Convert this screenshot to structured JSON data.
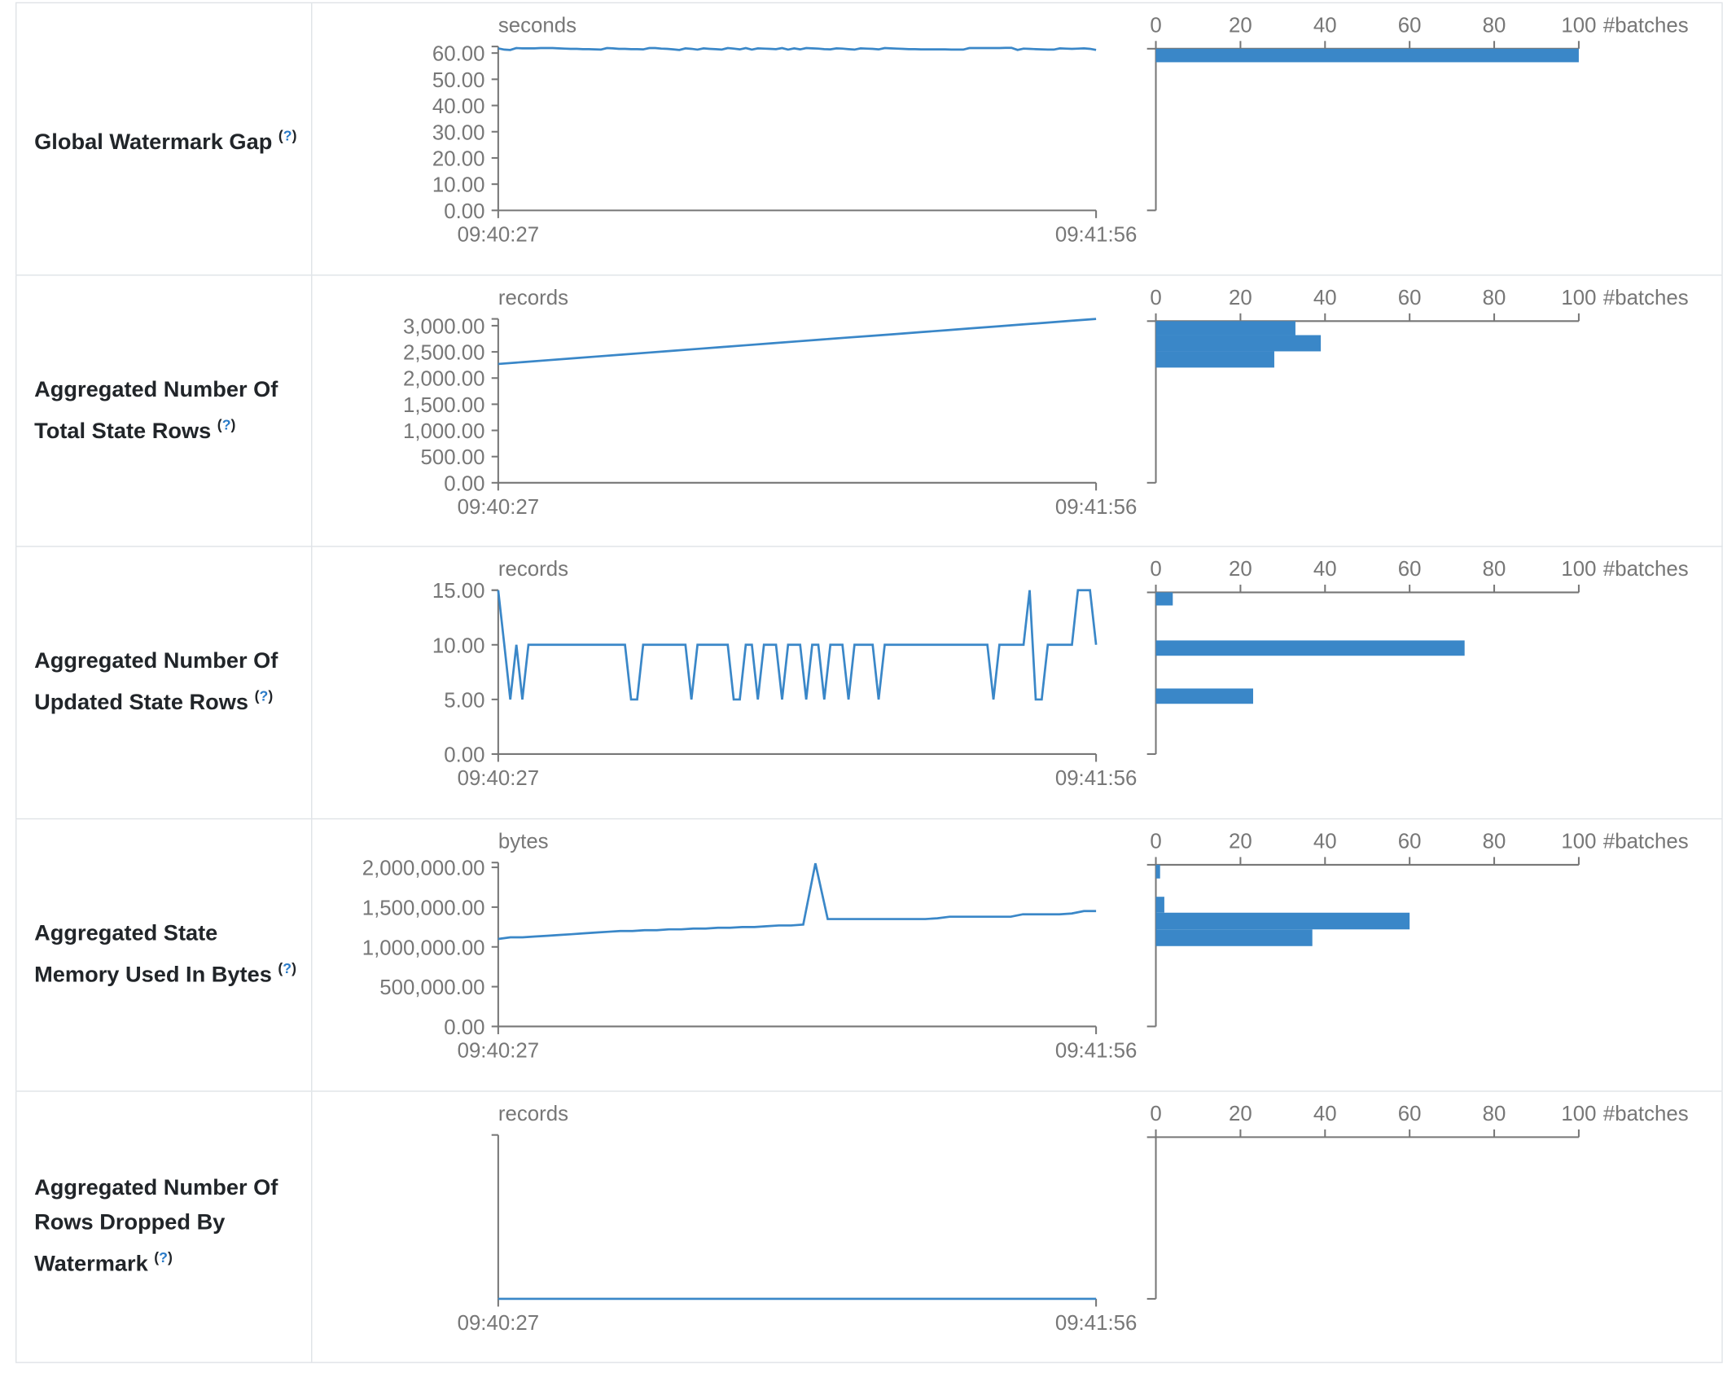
{
  "colors": {
    "series": "#3a87c8",
    "axis": "#777777",
    "border": "#dee2e6",
    "help": "#2a7bc8"
  },
  "help_icon": "question-mark",
  "x_axis": {
    "start": "09:40:27",
    "end": "09:41:56"
  },
  "histogram_axis": {
    "ticks": [
      "0",
      "20",
      "40",
      "60",
      "80",
      "100"
    ],
    "max": 100,
    "label": "#batches"
  },
  "rows": [
    {
      "label": "Global Watermark Gap",
      "help": "?",
      "chart_data": {
        "type": "line",
        "unit": "seconds",
        "ylim": [
          0,
          62.5
        ],
        "yticks": [
          {
            "v": 0,
            "t": "0.00"
          },
          {
            "v": 10,
            "t": "10.00"
          },
          {
            "v": 20,
            "t": "20.00"
          },
          {
            "v": 30,
            "t": "30.00"
          },
          {
            "v": 40,
            "t": "40.00"
          },
          {
            "v": 50,
            "t": "50.00"
          },
          {
            "v": 60,
            "t": "60.00"
          }
        ],
        "values": [
          61.8,
          61.3,
          61.2,
          61.9,
          61.8,
          61.8,
          61.8,
          61.9,
          61.9,
          61.9,
          61.8,
          61.7,
          61.6,
          61.6,
          61.5,
          61.5,
          61.4,
          61.3,
          61.9,
          61.8,
          61.6,
          61.6,
          61.5,
          61.5,
          61.4,
          61.9,
          61.9,
          61.7,
          61.6,
          61.4,
          61.2,
          61.8,
          61.6,
          61.3,
          61.8,
          61.6,
          61.5,
          61.3,
          61.9,
          61.7,
          61.4,
          61.9,
          61.3,
          61.8,
          61.7,
          61.6,
          61.5,
          61.9,
          61.3,
          61.8,
          61.4,
          61.9,
          61.8,
          61.7,
          61.5,
          61.4,
          61.8,
          61.7,
          61.5,
          61.3,
          61.8,
          61.7,
          61.6,
          61.4,
          61.9,
          61.8,
          61.7,
          61.6,
          61.5,
          61.5,
          61.4,
          61.4,
          61.4,
          61.4,
          61.4,
          61.3,
          61.3,
          61.3,
          61.9,
          61.9,
          61.9,
          61.9,
          61.9,
          61.9,
          62.0,
          62.0,
          61.2,
          61.7,
          61.6,
          61.5,
          61.4,
          61.3,
          61.3,
          61.8,
          61.7,
          61.6,
          61.7,
          61.8,
          61.6,
          61.2
        ],
        "histogram": [
          {
            "from": 56.5,
            "to": 62.5,
            "count": 100
          }
        ]
      }
    },
    {
      "label": "Aggregated Number Of Total State Rows",
      "help": "?",
      "chart_data": {
        "type": "line",
        "unit": "records",
        "ylim": [
          0,
          3130
        ],
        "yticks": [
          {
            "v": 0,
            "t": "0.00"
          },
          {
            "v": 500,
            "t": "500.00"
          },
          {
            "v": 1000,
            "t": "1,000.00"
          },
          {
            "v": 1500,
            "t": "1,500.00"
          },
          {
            "v": 2000,
            "t": "2,000.00"
          },
          {
            "v": 2500,
            "t": "2,500.00"
          },
          {
            "v": 3000,
            "t": "3,000.00"
          }
        ],
        "values": [
          2270,
          2306,
          2342,
          2377,
          2413,
          2449,
          2485,
          2521,
          2557,
          2592,
          2628,
          2664,
          2700,
          2736,
          2772,
          2807,
          2843,
          2879,
          2915,
          2951,
          2987,
          3022,
          3058,
          3094,
          3130
        ],
        "histogram": [
          {
            "from": 2820,
            "to": 3130,
            "count": 33
          },
          {
            "from": 2510,
            "to": 2820,
            "count": 39
          },
          {
            "from": 2200,
            "to": 2510,
            "count": 28
          }
        ]
      }
    },
    {
      "label": "Aggregated Number Of Updated State Rows",
      "help": "?",
      "chart_data": {
        "type": "line",
        "unit": "records",
        "ylim": [
          0,
          15
        ],
        "yticks": [
          {
            "v": 0,
            "t": "0.00"
          },
          {
            "v": 5,
            "t": "5.00"
          },
          {
            "v": 10,
            "t": "10.00"
          },
          {
            "v": 15,
            "t": "15.00"
          }
        ],
        "values": [
          15,
          10,
          5,
          10,
          5,
          10,
          10,
          10,
          10,
          10,
          10,
          10,
          10,
          10,
          10,
          10,
          10,
          10,
          10,
          10,
          10,
          10,
          5,
          5,
          10,
          10,
          10,
          10,
          10,
          10,
          10,
          10,
          5,
          10,
          10,
          10,
          10,
          10,
          10,
          5,
          5,
          10,
          10,
          5,
          10,
          10,
          10,
          5,
          10,
          10,
          10,
          5,
          10,
          10,
          5,
          10,
          10,
          10,
          5,
          10,
          10,
          10,
          10,
          5,
          10,
          10,
          10,
          10,
          10,
          10,
          10,
          10,
          10,
          10,
          10,
          10,
          10,
          10,
          10,
          10,
          10,
          10,
          5,
          10,
          10,
          10,
          10,
          10,
          15,
          5,
          5,
          10,
          10,
          10,
          10,
          10,
          15,
          15,
          15,
          10
        ],
        "histogram": [
          {
            "from": 13.6,
            "to": 15,
            "count": 4
          },
          {
            "from": 9.0,
            "to": 10.4,
            "count": 73
          },
          {
            "from": 4.6,
            "to": 6.0,
            "count": 23
          }
        ]
      }
    },
    {
      "label": "Aggregated State Memory Used In Bytes",
      "help": "?",
      "chart_data": {
        "type": "line",
        "unit": "bytes",
        "ylim": [
          0,
          2060000
        ],
        "yticks": [
          {
            "v": 0,
            "t": "0.00"
          },
          {
            "v": 500000,
            "t": "500,000.00"
          },
          {
            "v": 1000000,
            "t": "1,000,000.00"
          },
          {
            "v": 1500000,
            "t": "1,500,000.00"
          },
          {
            "v": 2000000,
            "t": "2,000,000.00"
          }
        ],
        "values": [
          1100000,
          1120000,
          1120000,
          1130000,
          1140000,
          1150000,
          1160000,
          1170000,
          1180000,
          1190000,
          1200000,
          1200000,
          1210000,
          1210000,
          1220000,
          1220000,
          1230000,
          1230000,
          1240000,
          1240000,
          1250000,
          1250000,
          1260000,
          1270000,
          1270000,
          1280000,
          2050000,
          1350000,
          1350000,
          1350000,
          1350000,
          1350000,
          1350000,
          1350000,
          1350000,
          1350000,
          1360000,
          1380000,
          1380000,
          1380000,
          1380000,
          1380000,
          1380000,
          1410000,
          1410000,
          1410000,
          1410000,
          1420000,
          1450000,
          1450000
        ],
        "histogram": [
          {
            "from": 1860000,
            "to": 2060000,
            "count": 1
          },
          {
            "from": 1430000,
            "to": 1630000,
            "count": 2
          },
          {
            "from": 1220000,
            "to": 1430000,
            "count": 60
          },
          {
            "from": 1010000,
            "to": 1220000,
            "count": 37
          }
        ]
      }
    },
    {
      "label": "Aggregated Number Of Rows Dropped By Watermark",
      "help": "?",
      "chart_data": {
        "type": "line",
        "unit": "records",
        "ylim": [
          0,
          1
        ],
        "yticks": [],
        "values": [
          0,
          0,
          0,
          0,
          0,
          0,
          0,
          0,
          0,
          0
        ],
        "histogram": []
      }
    }
  ]
}
